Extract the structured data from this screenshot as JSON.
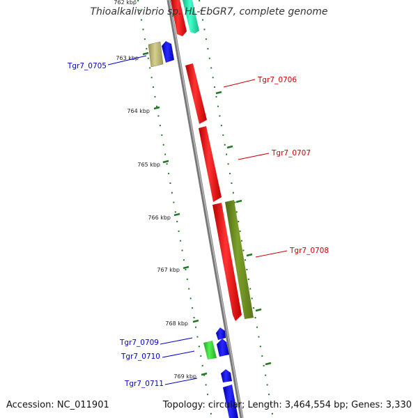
{
  "title": "Thioalkalivibrio sp. HL-EbGR7, complete genome",
  "footer": {
    "accession": "Accession: NC_011901",
    "topology": "Topology: circular; Length: 3,464,554 bp; Genes: 3,330"
  },
  "scale_labels": [
    "762 kbp",
    "763 kbp",
    "764 kbp",
    "765 kbp",
    "766 kbp",
    "767 kbp",
    "768 kbp",
    "769 kbp"
  ],
  "gene_labels": [
    {
      "text": "Tgr7_0705",
      "color": "#0000cc"
    },
    {
      "text": "Tgr7_0706",
      "color": "#cc0000"
    },
    {
      "text": "Tgr7_0707",
      "color": "#cc0000"
    },
    {
      "text": "Tgr7_0708",
      "color": "#cc0000"
    },
    {
      "text": "Tgr7_0709",
      "color": "#0000cc"
    },
    {
      "text": "Tgr7_0710",
      "color": "#0000cc"
    },
    {
      "text": "Tgr7_0711",
      "color": "#0000cc"
    }
  ],
  "colors": {
    "backbone": "#888888",
    "tick": "#227722",
    "red_gene": "#ee1111",
    "blue_gene": "#1111ee",
    "olive_gene": "#6b8e23",
    "green_gene": "#33cc33",
    "teal_gene": "#22ddaa",
    "khaki_gene": "#bdb76b"
  }
}
